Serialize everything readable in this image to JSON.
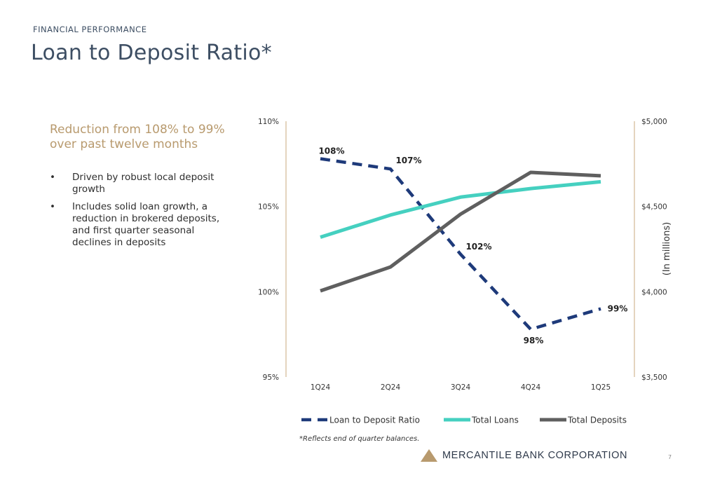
{
  "header": {
    "eyebrow": "FINANCIAL PERFORMANCE",
    "title": "Loan to Deposit Ratio*"
  },
  "summary": {
    "headline": "Reduction from 108% to 99% over past twelve months",
    "bullets": [
      "Driven by robust local deposit growth",
      "Includes solid loan growth, a reduction in brokered deposits, and first quarter seasonal declines in deposits"
    ]
  },
  "footnote": "*Reflects end of quarter balances.",
  "footer": {
    "company": "MERCANTILE BANK CORPORATION",
    "page_number": "7"
  },
  "colors": {
    "ratio": "#1e3a7a",
    "loans": "#45d0c0",
    "deposits": "#5f5f5f",
    "axis": "#c9a97e",
    "accent": "#b89a6e"
  },
  "chart_data": {
    "type": "line",
    "categories": [
      "1Q24",
      "2Q24",
      "3Q24",
      "4Q24",
      "1Q25"
    ],
    "y_left": {
      "ticks": [
        "95%",
        "100%",
        "105%",
        "110%"
      ],
      "range": [
        95,
        110
      ]
    },
    "y_right": {
      "ticks": [
        "$3,500",
        "$4,000",
        "$4,500",
        "$5,000"
      ],
      "range": [
        3500,
        5000
      ],
      "label": "(In millions)"
    },
    "series": [
      {
        "name": "Loan to Deposit Ratio",
        "axis": "left",
        "style": "dashed",
        "values": [
          107.8,
          107.2,
          102.2,
          97.8,
          99.0
        ],
        "labels": [
          "108%",
          "107%",
          "102%",
          "98%",
          "99%"
        ]
      },
      {
        "name": "Total Loans",
        "axis": "right",
        "style": "solid",
        "values": [
          4320,
          4450,
          4555,
          4605,
          4645
        ]
      },
      {
        "name": "Total Deposits",
        "axis": "right",
        "style": "solid",
        "values": [
          4005,
          4145,
          4455,
          4700,
          4680
        ]
      }
    ],
    "legend_position": "bottom"
  }
}
